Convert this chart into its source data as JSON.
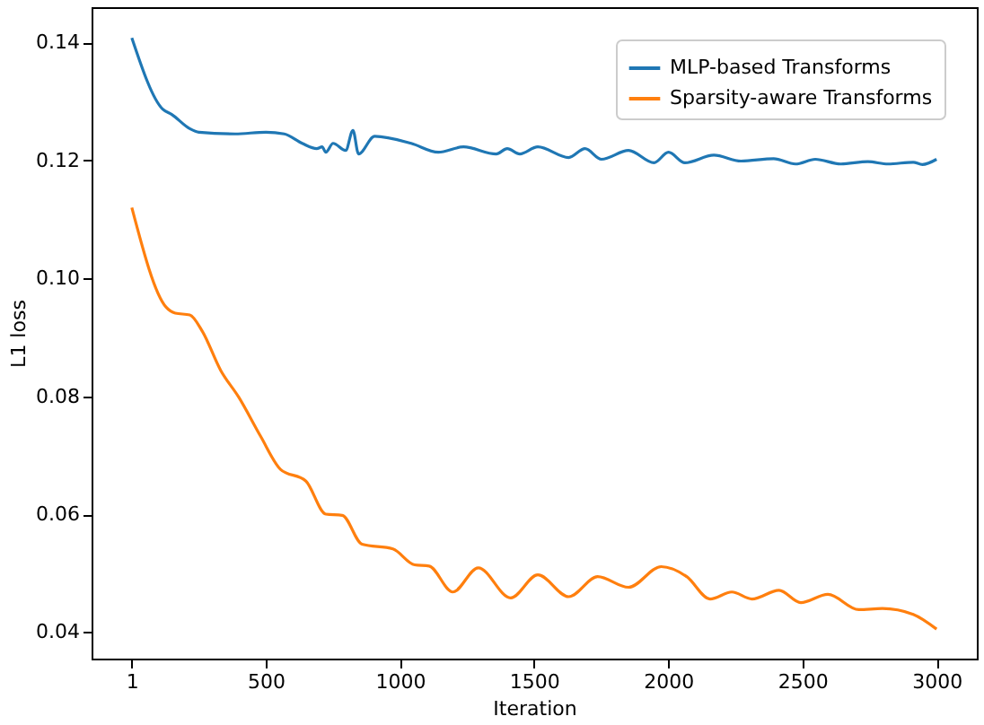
{
  "chart_data": {
    "type": "line",
    "xlabel": "Iteration",
    "ylabel": "L1 loss",
    "xlim": [
      -149,
      3150
    ],
    "ylim": [
      0.0355,
      0.146
    ],
    "xticks": [
      1,
      500,
      1000,
      1500,
      2000,
      2500,
      3000
    ],
    "yticks": [
      0.04,
      0.06,
      0.08,
      {
        "value": 0.1,
        "label": "0.10"
      },
      0.12,
      0.14
    ],
    "grid": false,
    "legend": "top right",
    "series": [
      {
        "name": "MLP-based Transforms",
        "color": "#1f77b4",
        "x": [
          1,
          116,
          150,
          217,
          251,
          386,
          501,
          569,
          636,
          690,
          710,
          724,
          751,
          798,
          825,
          846,
          906,
          1042,
          1143,
          1237,
          1359,
          1400,
          1447,
          1514,
          1629,
          1690,
          1751,
          1852,
          1947,
          2001,
          2062,
          2170,
          2271,
          2393,
          2474,
          2548,
          2643,
          2744,
          2819,
          2913,
          2947,
          3000
        ],
        "values": [
          0.1408,
          0.1287,
          0.1278,
          0.1254,
          0.1248,
          0.1245,
          0.1248,
          0.1245,
          0.1229,
          0.122,
          0.1223,
          0.1214,
          0.1229,
          0.1217,
          0.1251,
          0.1211,
          0.1241,
          0.1229,
          0.1214,
          0.1223,
          0.1211,
          0.122,
          0.1211,
          0.1223,
          0.1205,
          0.122,
          0.1202,
          0.1217,
          0.1196,
          0.1214,
          0.1196,
          0.1209,
          0.1199,
          0.1203,
          0.1194,
          0.1202,
          0.1194,
          0.1198,
          0.1194,
          0.1197,
          0.1193,
          0.1202
        ]
      },
      {
        "name": "Sparsity-aware Transforms",
        "color": "#ff7f0e",
        "x": [
          1,
          129,
          163,
          217,
          264,
          332,
          400,
          481,
          555,
          650,
          724,
          785,
          859,
          974,
          1055,
          1109,
          1197,
          1292,
          1413,
          1514,
          1629,
          1737,
          1852,
          1974,
          2069,
          2156,
          2237,
          2312,
          2413,
          2494,
          2595,
          2710,
          2798,
          2913,
          3000
        ],
        "values": [
          0.112,
          0.0951,
          0.0941,
          0.0938,
          0.091,
          0.0844,
          0.0798,
          0.0732,
          0.0676,
          0.0656,
          0.06,
          0.0598,
          0.0549,
          0.0541,
          0.0514,
          0.0512,
          0.0468,
          0.0509,
          0.0458,
          0.0497,
          0.046,
          0.0494,
          0.0476,
          0.0511,
          0.0494,
          0.0456,
          0.0468,
          0.0456,
          0.0471,
          0.045,
          0.0464,
          0.0438,
          0.044,
          0.043,
          0.0405
        ]
      }
    ]
  }
}
